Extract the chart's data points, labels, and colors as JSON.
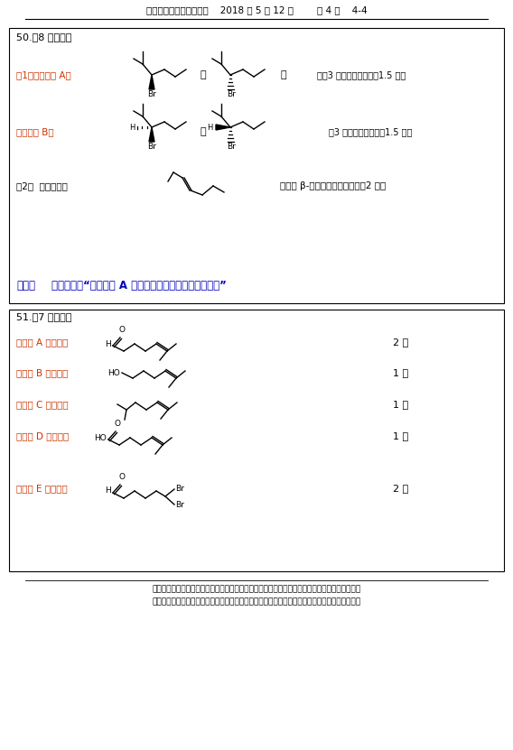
{
  "header_text": "高中学生化学竞赛答题卷    2018 年 5 月 12 日        共 4 页    4-4",
  "bg_color": "#ffffff",
  "box1_title": "50.（8 分）答：",
  "box2_title": "51.（7 分）答：",
  "q1_label1": "（1）反应产物 A：",
  "q1_score1": "；（3 分，每个结构式咄1.5 分）",
  "q1_label2": "反应产物 B：",
  "q1_score2": "（3 分，每个结构式咄1.5 分）",
  "q2_label": "（2）  主要产物：",
  "q2_score": "（发生 β-碳原子上氢的消除）（2 分）",
  "note_bold": "备注：",
  "note_text": "原题本应为“写出产物 A 在强碱作用下得到的产物的结构”",
  "cpd_a_label": "化合物 A 的结构：",
  "cpd_a_score": "2 分",
  "cpd_b_label": "化合物 B 的结构：",
  "cpd_b_score": "1 分",
  "cpd_c_label": "化合物 C 的结构：",
  "cpd_c_score": "1 分",
  "cpd_d_label": "化合物 D 的结构：",
  "cpd_d_score": "1 分",
  "cpd_e_label": "化合物 E 的结构：",
  "cpd_e_score": "2 分",
  "footer_line1": "郑重声明：本试题及答案的版权属广东省化学学会和广西化学化工学会共同所有，未经两学会化学",
  "footer_line2": "竞赛负责人授权，任何人不得翻印、不得在出版物或互联网网站上转载、贩卖、营利，否则追究。",
  "red_color": "#cc0000",
  "blue_color": "#0000bb",
  "black_color": "#000000",
  "label_red": "#cc3300",
  "and_text": "和"
}
